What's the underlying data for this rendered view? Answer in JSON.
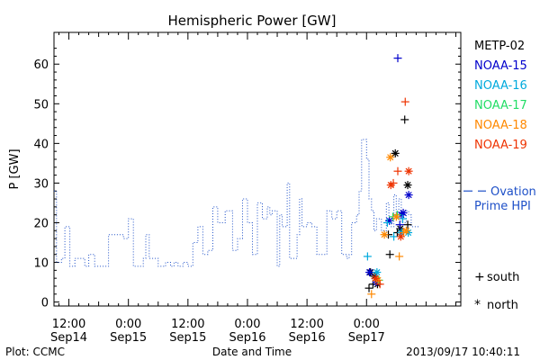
{
  "chart_data": {
    "type": "line",
    "title": "Hemispheric Power [GW]",
    "ylabel": "P [GW]",
    "xlabel": "Date and Time",
    "x_unit": "hours since Sep14 00:00",
    "xlim": [
      9,
      91
    ],
    "ylim": [
      -1,
      68
    ],
    "yticks": [
      0,
      10,
      20,
      30,
      40,
      50,
      60
    ],
    "xticks": [
      {
        "x": 12,
        "time": "12:00",
        "date": "Sep14"
      },
      {
        "x": 24,
        "time": "0:00",
        "date": "Sep15"
      },
      {
        "x": 36,
        "time": "12:00",
        "date": "Sep15"
      },
      {
        "x": 48,
        "time": "0:00",
        "date": "Sep16"
      },
      {
        "x": 60,
        "time": "12:00",
        "date": "Sep16"
      },
      {
        "x": 72,
        "time": "0:00",
        "date": "Sep17"
      }
    ],
    "ovation": {
      "name": "Ovation Prime HPI",
      "label_line1": "Ovation",
      "label_line2": "Prime HPI",
      "color": "#1e50c8",
      "style": "dotted-step",
      "x": [
        9.0,
        9.5,
        10.5,
        11.2,
        12.2,
        13.2,
        15.2,
        16.0,
        17.2,
        19.0,
        20.0,
        23.0,
        24.0,
        25.0,
        26.0,
        26.5,
        27.0,
        27.5,
        28.2,
        30.0,
        31.5,
        32.5,
        33.2,
        34.0,
        35.0,
        36.0,
        37.0,
        38.0,
        39.0,
        40.0,
        40.5,
        41.0,
        42.0,
        43.5,
        45.0,
        45.5,
        46.0,
        47.0,
        48.0,
        48.5,
        49.0,
        50.0,
        51.0,
        52.0,
        52.5,
        53.0,
        54.0,
        54.5,
        55.0,
        56.0,
        56.5,
        57.0,
        58.0,
        58.5,
        59.0,
        60.0,
        61.0,
        62.0,
        63.0,
        64.0,
        65.0,
        66.0,
        67.0,
        68.0,
        68.5,
        69.0,
        70.0,
        70.5,
        71.0,
        72.0,
        72.5,
        73.0,
        73.5,
        74.0,
        74.5,
        75.0,
        76.0,
        76.5,
        77.0,
        77.5,
        78.0,
        78.5,
        79.0,
        79.5,
        80.0,
        80.5,
        81.0,
        82.0
      ],
      "y": [
        28,
        10,
        11,
        19,
        9,
        11,
        9,
        12,
        9,
        9,
        17,
        16,
        21,
        9,
        9,
        9,
        11,
        17,
        11,
        9,
        10,
        9,
        10,
        9,
        10,
        9,
        15,
        19,
        12,
        13,
        13,
        24,
        20,
        23,
        13,
        13,
        16,
        26,
        20,
        20,
        12,
        25,
        21,
        24,
        22,
        23,
        9,
        22,
        19,
        30,
        11,
        11,
        17,
        26,
        19,
        20,
        19,
        12,
        12,
        23,
        21,
        23,
        12,
        11,
        12,
        20,
        22,
        28,
        41,
        36,
        26,
        23,
        18,
        21,
        21,
        18,
        25,
        20,
        19,
        27,
        22,
        26,
        20,
        20,
        23,
        22,
        19,
        19
      ]
    },
    "series": [
      {
        "name": "METP-02",
        "color": "#000000",
        "points": [
          {
            "x": 72.8,
            "y": 7.5,
            "m": "*"
          },
          {
            "x": 73.6,
            "y": 6.5,
            "m": "*"
          },
          {
            "x": 74.2,
            "y": 4.5,
            "m": "*"
          },
          {
            "x": 73.3,
            "y": 4.5,
            "m": "+"
          },
          {
            "x": 72.5,
            "y": 3.5,
            "m": "+"
          },
          {
            "x": 76.4,
            "y": 17.0,
            "m": "+"
          },
          {
            "x": 76.7,
            "y": 12.0,
            "m": "+"
          },
          {
            "x": 77.8,
            "y": 37.5,
            "m": "*"
          },
          {
            "x": 78.2,
            "y": 17.5,
            "m": "+"
          },
          {
            "x": 78.8,
            "y": 18.5,
            "m": "*"
          },
          {
            "x": 79.7,
            "y": 46.0,
            "m": "+"
          },
          {
            "x": 80.3,
            "y": 29.5,
            "m": "*"
          },
          {
            "x": 80.3,
            "y": 19.5,
            "m": "+"
          }
        ]
      },
      {
        "name": "NOAA-15",
        "color": "#0000cc",
        "points": [
          {
            "x": 72.6,
            "y": 7.5,
            "m": "*"
          },
          {
            "x": 74.0,
            "y": 5.0,
            "m": "*"
          },
          {
            "x": 76.6,
            "y": 20.5,
            "m": "*"
          },
          {
            "x": 78.3,
            "y": 61.5,
            "m": "+"
          },
          {
            "x": 79.0,
            "y": 22.0,
            "m": "*"
          },
          {
            "x": 79.4,
            "y": 22.5,
            "m": "*"
          },
          {
            "x": 80.5,
            "y": 27.0,
            "m": "*"
          },
          {
            "x": 78.7,
            "y": 19.5,
            "m": "+"
          }
        ]
      },
      {
        "name": "NOAA-16",
        "color": "#00aadd",
        "points": [
          {
            "x": 72.2,
            "y": 11.5,
            "m": "+"
          },
          {
            "x": 74.1,
            "y": 7.5,
            "m": "*"
          },
          {
            "x": 76.2,
            "y": 20.0,
            "m": "+"
          },
          {
            "x": 77.5,
            "y": 16.5,
            "m": "+"
          },
          {
            "x": 79.3,
            "y": 21.0,
            "m": "+"
          },
          {
            "x": 79.0,
            "y": 17.5,
            "m": "*"
          },
          {
            "x": 80.4,
            "y": 17.5,
            "m": "*"
          }
        ]
      },
      {
        "name": "NOAA-17",
        "color": "#22dd66",
        "points": [
          {
            "x": 77.3,
            "y": 21.5,
            "m": "+"
          },
          {
            "x": 78.2,
            "y": 22.0,
            "m": "+"
          },
          {
            "x": 74.5,
            "y": 5.5,
            "m": "+"
          }
        ]
      },
      {
        "name": "NOAA-18",
        "color": "#ff8800",
        "points": [
          {
            "x": 73.0,
            "y": 2.0,
            "m": "+"
          },
          {
            "x": 74.3,
            "y": 5.5,
            "m": "*"
          },
          {
            "x": 75.6,
            "y": 17.0,
            "m": "*"
          },
          {
            "x": 76.8,
            "y": 36.5,
            "m": "*"
          },
          {
            "x": 78.0,
            "y": 21.5,
            "m": "*"
          },
          {
            "x": 78.6,
            "y": 11.5,
            "m": "+"
          },
          {
            "x": 79.5,
            "y": 17.5,
            "m": "+"
          },
          {
            "x": 80.0,
            "y": 18.0,
            "m": "*"
          }
        ]
      },
      {
        "name": "NOAA-19",
        "color": "#ee3300",
        "points": [
          {
            "x": 73.8,
            "y": 6.0,
            "m": "*"
          },
          {
            "x": 74.7,
            "y": 4.5,
            "m": "+"
          },
          {
            "x": 76.9,
            "y": 29.5,
            "m": "*"
          },
          {
            "x": 77.4,
            "y": 30.0,
            "m": "+"
          },
          {
            "x": 78.3,
            "y": 33.0,
            "m": "+"
          },
          {
            "x": 78.9,
            "y": 16.5,
            "m": "*"
          },
          {
            "x": 79.8,
            "y": 50.5,
            "m": "+"
          },
          {
            "x": 80.5,
            "y": 33.0,
            "m": "*"
          }
        ]
      }
    ],
    "marker_legend": [
      {
        "symbol": "+",
        "label": "south"
      },
      {
        "symbol": "*",
        "label": "north"
      }
    ],
    "grid": false,
    "legend_position": "right"
  },
  "footer": {
    "plot_credit": "Plot: CCMC",
    "xlabel": "Date and Time",
    "timestamp": "2013/09/17 10:40:11"
  }
}
